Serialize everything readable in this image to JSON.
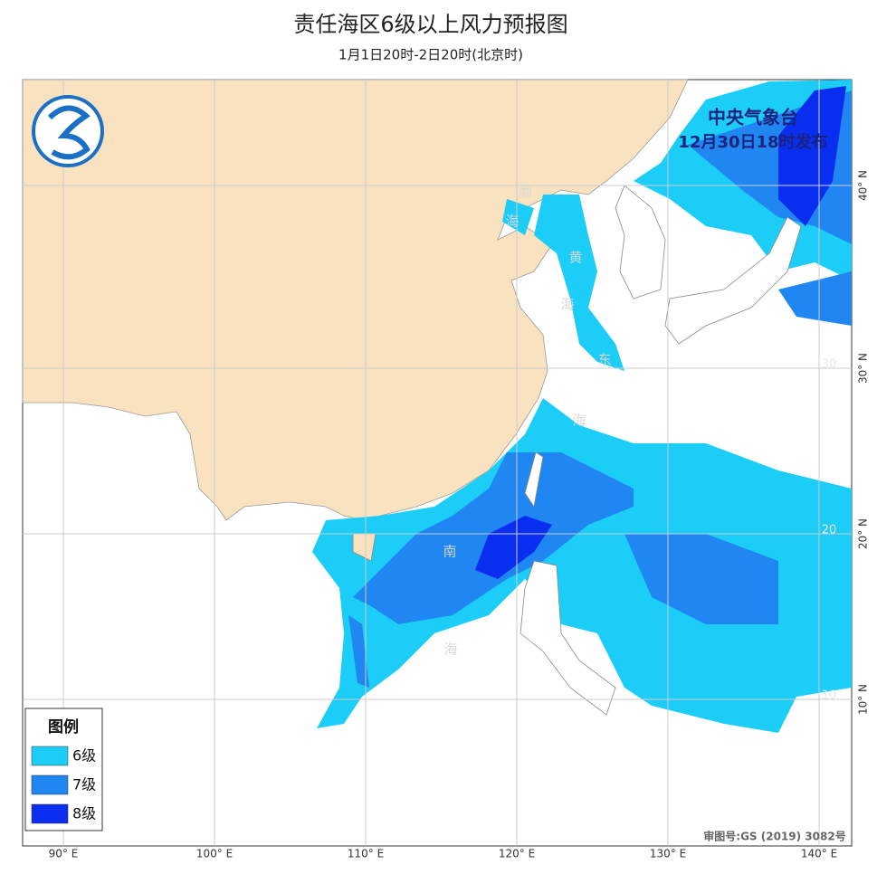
{
  "header": {
    "title": "责任海区6级以上风力预报图",
    "subtitle": "1月1日20时-2日20时(北京时)"
  },
  "issuer": {
    "name": "中央气象台",
    "time": "12月30日18时发布"
  },
  "legend": {
    "title": "图例",
    "items": [
      {
        "label": "6级",
        "color": "#1ccdf8"
      },
      {
        "label": "7级",
        "color": "#1f86f2"
      },
      {
        "label": "8级",
        "color": "#0a2ef0"
      }
    ]
  },
  "longitude_labels": [
    "90° E",
    "100° E",
    "110° E",
    "120° E",
    "130° E",
    "140° E"
  ],
  "latitude_labels": [
    "40° N",
    "30° N",
    "20° N",
    "10° N"
  ],
  "latitude_inner_labels": [
    "30",
    "20",
    "10"
  ],
  "sea_labels": [
    "渤",
    "海",
    "黄",
    "海",
    "东",
    "海",
    "南",
    "海"
  ],
  "approval": "审图号:GS (2019) 3082号"
}
